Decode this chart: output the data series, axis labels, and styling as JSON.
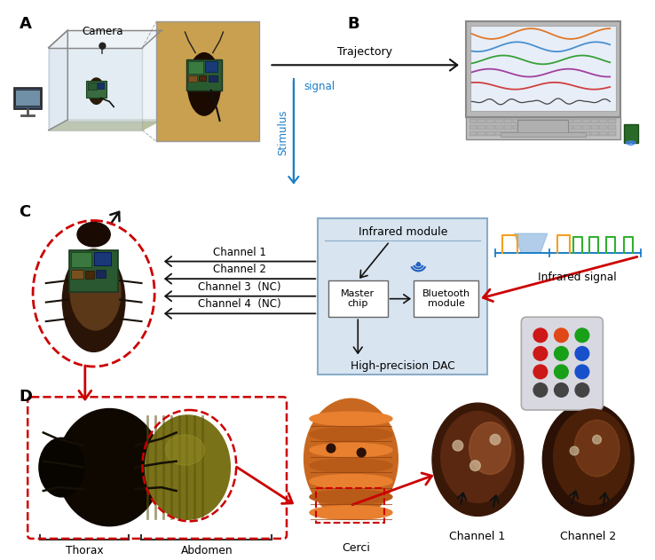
{
  "bg_color": "#ffffff",
  "panel_A_label": "A",
  "panel_B_label": "B",
  "panel_C_label": "C",
  "panel_D_label": "D",
  "camera_label": "Camera",
  "trajectory_label": "Trajectory",
  "signal_label": "signal",
  "stimulus_label": "Stimulus",
  "infrared_module_label": "Infrared module",
  "master_chip_label": "Master\nchip",
  "bluetooth_module_label": "Bluetooth\nmodule",
  "high_precision_dac_label": "High-precision DAC",
  "infrared_signal_label": "Infrared signal",
  "channel1_label": "Channel 1",
  "channel2_label": "Channel 2",
  "channel3_label": "Channel 3  (NC)",
  "channel4_label": "Channel 4  (NC)",
  "thorax_label": "Thorax",
  "abdomen_label": "Abdomen",
  "cerci_label": "Cerci",
  "ch1_label": "Channel 1",
  "ch2_label": "Channel 2",
  "box_bg_color": "#d8e4f0",
  "box_border_color": "#8bacc8",
  "arrow_black": "#111111",
  "arrow_red": "#cc0000",
  "arrow_blue": "#1a7ec8",
  "signal_orange": "#f5a020",
  "signal_green": "#30b030",
  "signal_blue_line": "#1a7ec8",
  "signal_blue_fill": "#90b8e0",
  "dashed_red": "#cc0000",
  "laptop_body": "#c8c8c8",
  "laptop_screen_bg": "#e8e8e8",
  "monitor_color": "#3a5070",
  "glass_box_color": "#c8d8e8",
  "glass_box_bottom": "#b8c0a0",
  "inset_bg": "#c8a050",
  "remote_bg": "#d8d8e0",
  "traj_colors": [
    "#e07828",
    "#4890d0",
    "#38a038",
    "#a040a0",
    "#d04040"
  ]
}
